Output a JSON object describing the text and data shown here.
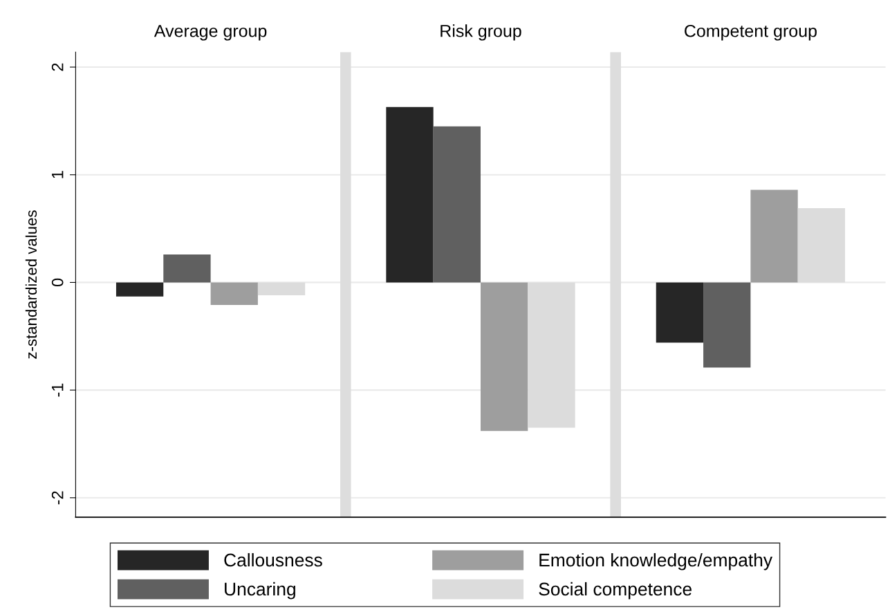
{
  "chart_data": {
    "type": "bar",
    "ylabel": "z-standardized values",
    "categories": [
      "Average group",
      "Risk group",
      "Competent group"
    ],
    "ylim": [
      -2.18,
      2.14
    ],
    "yticks": [
      -2,
      -1,
      0,
      1,
      2
    ],
    "grid": "y",
    "legend": "bottom",
    "series": [
      {
        "name": "Callousness",
        "color": "#262626",
        "values": [
          -0.13,
          1.63,
          -0.56
        ]
      },
      {
        "name": "Uncaring",
        "color": "#606060",
        "values": [
          0.26,
          1.45,
          -0.79
        ]
      },
      {
        "name": "Emotion knowledge/empathy",
        "color": "#9e9e9e",
        "values": [
          -0.21,
          -1.38,
          0.86
        ]
      },
      {
        "name": "Social competence",
        "color": "#dcdcdc",
        "values": [
          -0.12,
          -1.35,
          0.69
        ]
      }
    ]
  }
}
